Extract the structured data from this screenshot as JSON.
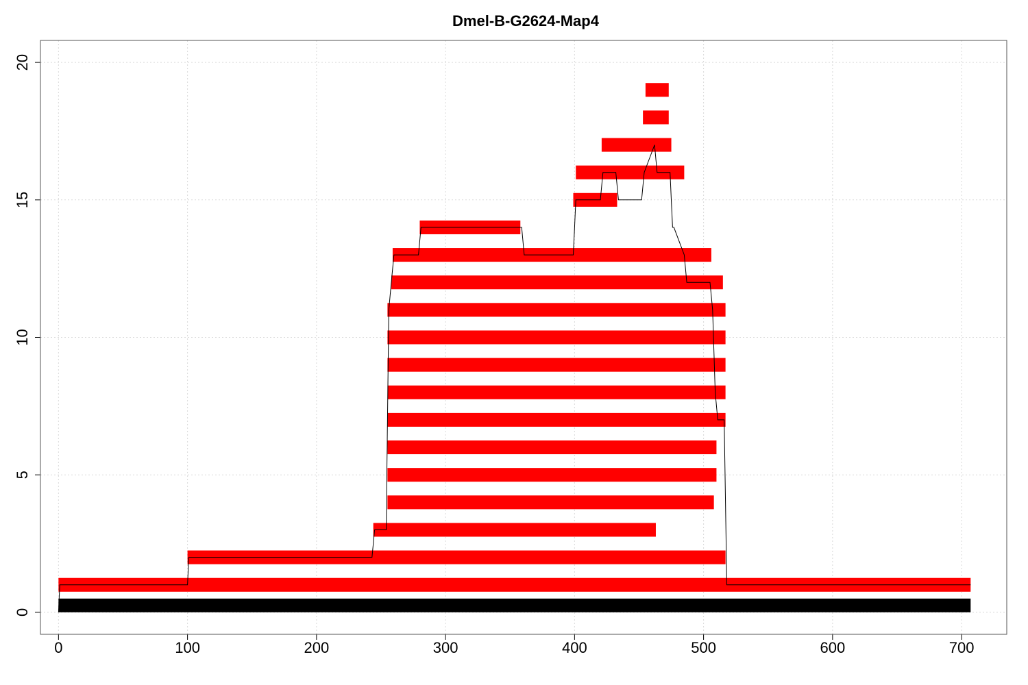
{
  "chart_data": {
    "type": "bar",
    "title": "Dmel-B-G2624-Map4",
    "xlabel": "",
    "ylabel": "",
    "xlim": [
      -14,
      735
    ],
    "ylim": [
      -0.8,
      20.8
    ],
    "x_ticks": [
      0,
      100,
      200,
      300,
      400,
      500,
      600,
      700
    ],
    "y_ticks": [
      0,
      5,
      10,
      15,
      20
    ],
    "grid": true,
    "colors": {
      "reference": "#000000",
      "reads": "#ff0000",
      "coverage_line": "#000000",
      "grid": "#d9d9d9"
    },
    "reference": {
      "start": 0,
      "end": 707,
      "y": 0
    },
    "reads": [
      {
        "row": 1,
        "start": 0,
        "end": 707
      },
      {
        "row": 2,
        "start": 100,
        "end": 517
      },
      {
        "row": 3,
        "start": 244,
        "end": 463
      },
      {
        "row": 4,
        "start": 255,
        "end": 508
      },
      {
        "row": 5,
        "start": 255,
        "end": 510
      },
      {
        "row": 6,
        "start": 255,
        "end": 510
      },
      {
        "row": 7,
        "start": 255,
        "end": 517
      },
      {
        "row": 8,
        "start": 255,
        "end": 517
      },
      {
        "row": 9,
        "start": 255,
        "end": 517
      },
      {
        "row": 10,
        "start": 255,
        "end": 517
      },
      {
        "row": 11,
        "start": 255,
        "end": 517
      },
      {
        "row": 12,
        "start": 258,
        "end": 515
      },
      {
        "row": 13,
        "start": 259,
        "end": 506
      },
      {
        "row": 14,
        "start": 280,
        "end": 358
      },
      {
        "row": 15,
        "start": 399,
        "end": 433
      },
      {
        "row": 16,
        "start": 401,
        "end": 485
      },
      {
        "row": 17,
        "start": 421,
        "end": 475
      },
      {
        "row": 18,
        "start": 453,
        "end": 473
      },
      {
        "row": 19,
        "start": 455,
        "end": 473
      }
    ],
    "coverage": {
      "x": [
        0,
        1,
        100,
        101,
        243,
        245,
        254,
        256,
        258,
        260,
        279,
        281,
        359,
        361,
        399,
        400,
        401,
        402,
        420,
        422,
        432,
        434,
        452,
        454,
        462,
        464,
        474,
        475,
        476,
        477,
        485,
        487,
        505,
        507,
        509,
        511,
        516,
        518,
        707
      ],
      "y": [
        0,
        1,
        1,
        2,
        2,
        3,
        3,
        11,
        12,
        13,
        13,
        14,
        14,
        13,
        13,
        14,
        15,
        15,
        15,
        16,
        16,
        15,
        15,
        16,
        17,
        16,
        16,
        15,
        14,
        14,
        13,
        12,
        12,
        11,
        8,
        7,
        7,
        1,
        1
      ]
    }
  }
}
